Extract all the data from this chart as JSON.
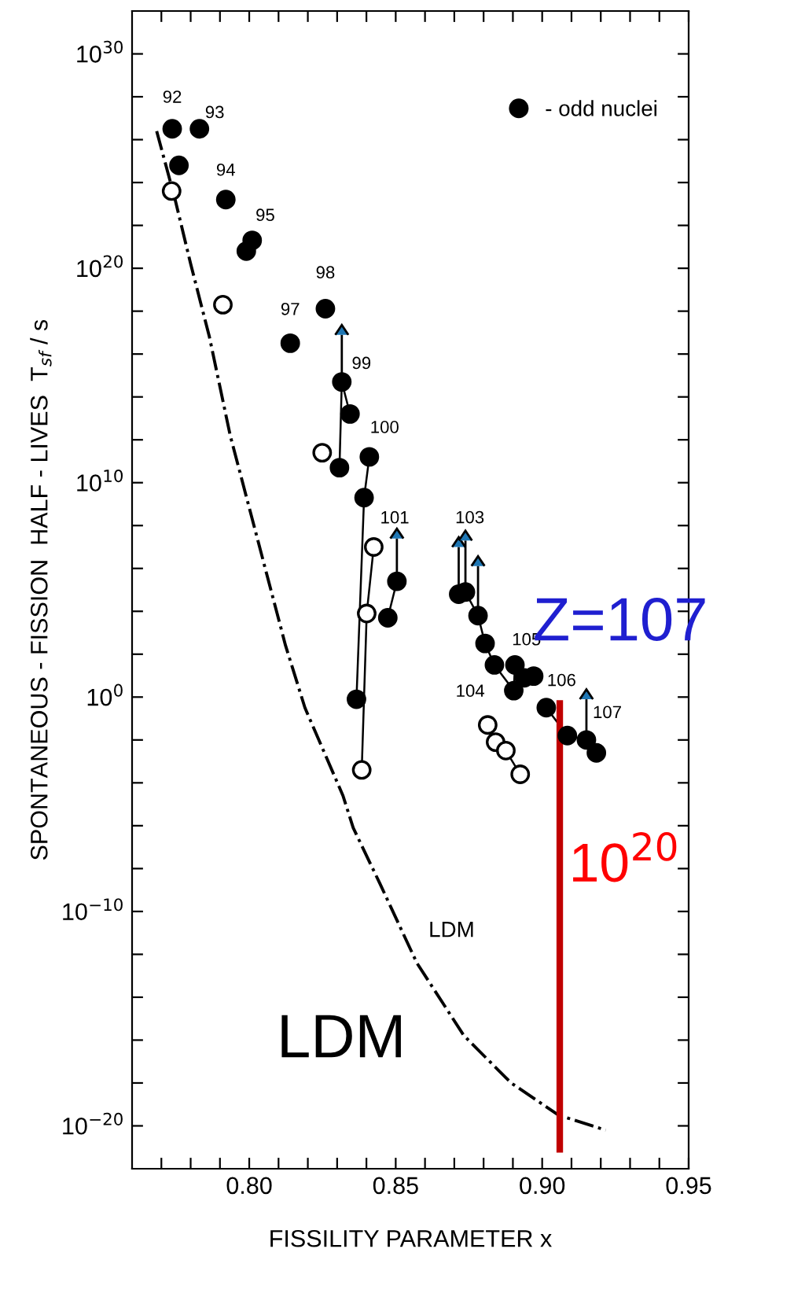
{
  "chart_data": {
    "type": "scatter",
    "xlabel": "FISSILITY PARAMETER x",
    "ylabel": "SPONTANEOUS - FISSION  HALF - LIVES  T$_{sf}$ / s",
    "log": "y",
    "grid": false,
    "legend": "top right",
    "xlim": [
      0.76,
      0.95
    ],
    "ylim": [
      1e-22,
      1e+32
    ],
    "xticks": [
      {
        "value": 0.77,
        "label": null
      },
      {
        "value": 0.78,
        "label": null
      },
      {
        "value": 0.79,
        "label": null
      },
      {
        "value": 0.8,
        "label": "0.80"
      },
      {
        "value": 0.81,
        "label": null
      },
      {
        "value": 0.82,
        "label": null
      },
      {
        "value": 0.83,
        "label": null
      },
      {
        "value": 0.84,
        "label": null
      },
      {
        "value": 0.85,
        "label": "0.85"
      },
      {
        "value": 0.86,
        "label": null
      },
      {
        "value": 0.87,
        "label": null
      },
      {
        "value": 0.88,
        "label": null
      },
      {
        "value": 0.89,
        "label": null
      },
      {
        "value": 0.9,
        "label": "0.90"
      },
      {
        "value": 0.91,
        "label": null
      },
      {
        "value": 0.92,
        "label": null
      },
      {
        "value": 0.93,
        "label": null
      },
      {
        "value": 0.94,
        "label": null
      },
      {
        "value": 0.95,
        "label": "0.95"
      }
    ],
    "yticks": [
      {
        "value": 1e-20,
        "label": "10$^{−20}$"
      },
      {
        "value": 1e-18,
        "label": null
      },
      {
        "value": 1e-16,
        "label": null
      },
      {
        "value": 1e-14,
        "label": null
      },
      {
        "value": 1e-12,
        "label": null
      },
      {
        "value": 1e-10,
        "label": "10$^{−10}$"
      },
      {
        "value": 1e-08,
        "label": null
      },
      {
        "value": 1e-06,
        "label": null
      },
      {
        "value": 0.0001,
        "label": null
      },
      {
        "value": 0.01,
        "label": null
      },
      {
        "value": 1,
        "label": "10$^{0}$"
      },
      {
        "value": 100.0,
        "label": null
      },
      {
        "value": 10000.0,
        "label": null
      },
      {
        "value": 1000000.0,
        "label": null
      },
      {
        "value": 100000000.0,
        "label": null
      },
      {
        "value": 10000000000.0,
        "label": "10$^{10}$"
      },
      {
        "value": 1000000000000.0,
        "label": null
      },
      {
        "value": 100000000000000.0,
        "label": null
      },
      {
        "value": 1e+16,
        "label": null
      },
      {
        "value": 1e+18,
        "label": null
      },
      {
        "value": 1e+20,
        "label": "10$^{20}$"
      },
      {
        "value": 1e+22,
        "label": null
      },
      {
        "value": 1e+24,
        "label": null
      },
      {
        "value": 1e+26,
        "label": null
      },
      {
        "value": 1e+28,
        "label": null
      },
      {
        "value": 1e+30,
        "label": "10$^{30}$"
      }
    ],
    "series": [
      {
        "name": "LDM",
        "type": "line",
        "color": "#000000",
        "line_style": "dashdot",
        "marker": "none",
        "x": [
          0.7684,
          0.7747,
          0.78,
          0.7864,
          0.7935,
          0.8124,
          0.819,
          0.832,
          0.8355,
          0.8446,
          0.8572,
          0.8733,
          0.8894,
          0.9055,
          0.9217
        ],
        "values": [
          2.5e+26,
          1.6e+23,
          1.6e+20,
          6.3e+16,
          1600000000000.0,
          251,
          0.32,
          2.5e-05,
          7.9e-07,
          2e-09,
          4e-13,
          1.6e-16,
          1e-18,
          3.2e-20,
          6.3e-21
        ]
      },
      {
        "type": "line",
        "color": "#000000",
        "line_style": "solid",
        "marker": "none",
        "x": [
          0.8308,
          0.8316,
          0.8344
        ],
        "values": [
          50000000000.0,
          500000000000000.0,
          16000000000000.0
        ]
      },
      {
        "type": "line",
        "color": "#000000",
        "line_style": "solid",
        "marker": "none",
        "x": [
          0.841,
          0.8392,
          0.8366
        ],
        "values": [
          160000000000.0,
          2000000000.0,
          0.79
        ]
      },
      {
        "type": "line",
        "color": "#000000",
        "line_style": "solid",
        "marker": "none",
        "x": [
          0.8425,
          0.8401,
          0.8384
        ],
        "values": [
          10000000.0,
          7900.0,
          0.0004
        ]
      },
      {
        "type": "line",
        "color": "#000000",
        "line_style": "solid",
        "marker": "none",
        "x": [
          0.8473,
          0.8504
        ],
        "values": [
          5000.0,
          250000.0
        ]
      },
      {
        "type": "line",
        "color": "#000000",
        "line_style": "solid",
        "marker": "none",
        "x": [
          0.8715,
          0.8738,
          0.8781,
          0.8805,
          0.8837,
          0.8903,
          0.8907,
          0.8939,
          0.8971
        ],
        "values": [
          63000.0,
          79000.0,
          6300.0,
          316,
          31.6,
          2,
          31.6,
          7.9,
          9.5
        ]
      },
      {
        "type": "line",
        "color": "#000000",
        "line_style": "solid",
        "marker": "none",
        "x": [
          0.8814,
          0.8841,
          0.8876,
          0.8925
        ],
        "values": [
          0.05,
          0.0079,
          0.0032,
          0.00025
        ]
      },
      {
        "type": "line",
        "color": "#000000",
        "line_style": "solid",
        "marker": "none",
        "x": [
          0.9014,
          0.9086,
          0.9151,
          0.9185
        ],
        "values": [
          0.32,
          0.016,
          0.01,
          0.0025
        ]
      },
      {
        "name": "- odd nuclei",
        "color": "#000000",
        "marker": "circle",
        "x": [
          0.7737,
          0.776,
          0.783,
          0.792,
          0.799,
          0.801,
          0.814,
          0.826,
          0.8316,
          0.8344,
          0.8308,
          0.841,
          0.8392,
          0.8366,
          0.8504,
          0.8473,
          0.8715,
          0.8738,
          0.8781,
          0.8805,
          0.8837,
          0.8903,
          0.8907,
          0.8939,
          0.8971,
          0.9014,
          0.9086,
          0.9151,
          0.9185
        ],
        "values": [
          3.2e+26,
          6.3e+24,
          3.2e+26,
          1.6e+23,
          6.3e+20,
          2e+21,
          3.2e+16,
          1.3e+18,
          500000000000000.0,
          16000000000000.0,
          50000000000.0,
          160000000000.0,
          2000000000.0,
          0.79,
          250000.0,
          5000.0,
          63000.0,
          79000.0,
          6300.0,
          316,
          31.6,
          2.0,
          31.6,
          7.9,
          9.5,
          0.32,
          0.016,
          0.01,
          0.0025
        ],
        "errors": [
          null,
          null,
          null,
          null,
          null,
          null,
          null,
          null,
          [
            500000000000000.0,
            7.9e+16
          ],
          null,
          null,
          null,
          null,
          null,
          [
            250000.0,
            25000000.0
          ],
          null,
          [
            63000.0,
            10000000.0
          ],
          [
            79000.0,
            20000000.0
          ],
          [
            6300.0,
            1300000.0
          ],
          null,
          null,
          null,
          null,
          null,
          null,
          null,
          null,
          [
            0.01,
            0.79
          ],
          null
        ]
      },
      {
        "color": "#ffffff",
        "marker": "circle",
        "x": [
          0.7735,
          0.791,
          0.8249,
          0.8425,
          0.8401,
          0.8384,
          0.8814,
          0.8841,
          0.8876,
          0.8925
        ],
        "values": [
          4e+23,
          2e+18,
          250000000000.0,
          10000000.0,
          7900.0,
          0.0004,
          0.05,
          0.0079,
          0.0032,
          0.00025
        ]
      },
      {
        "type": "line",
        "color": "#c00000",
        "line_style": "solid",
        "marker": "none",
        "x": [
          0.906,
          0.906
        ],
        "values": [
          0.5,
          8e-22
        ]
      }
    ],
    "annotations": [
      {
        "text": "92",
        "x": 0.7737,
        "y": 3.2e+26
      },
      {
        "text": "93",
        "x": 0.783,
        "y": 3.2e+26
      },
      {
        "text": "94",
        "x": 0.792,
        "y": 1.6e+23
      },
      {
        "text": "95",
        "x": 0.801,
        "y": 2e+21
      },
      {
        "text": "97",
        "x": 0.814,
        "y": 3.2e+16
      },
      {
        "text": "98",
        "x": 0.826,
        "y": 1.3e+18
      },
      {
        "text": "99",
        "x": 0.8316,
        "y": 500000000000000.0
      },
      {
        "text": "100",
        "x": 0.841,
        "y": 160000000000.0
      },
      {
        "text": "101",
        "x": 0.8504,
        "y": 25000000.0
      },
      {
        "text": "103",
        "x": 0.8738,
        "y": 20000000.0
      },
      {
        "text": "104",
        "x": 0.8814,
        "y": 0.05
      },
      {
        "text": "105",
        "x": 0.8939,
        "y": 7.9
      },
      {
        "text": "106",
        "x": 0.9014,
        "y": 0.32
      },
      {
        "text": "107",
        "x": 0.9185,
        "y": 0.0025
      },
      "Z=107",
      "10$^{20}$",
      "LDM"
    ]
  }
}
